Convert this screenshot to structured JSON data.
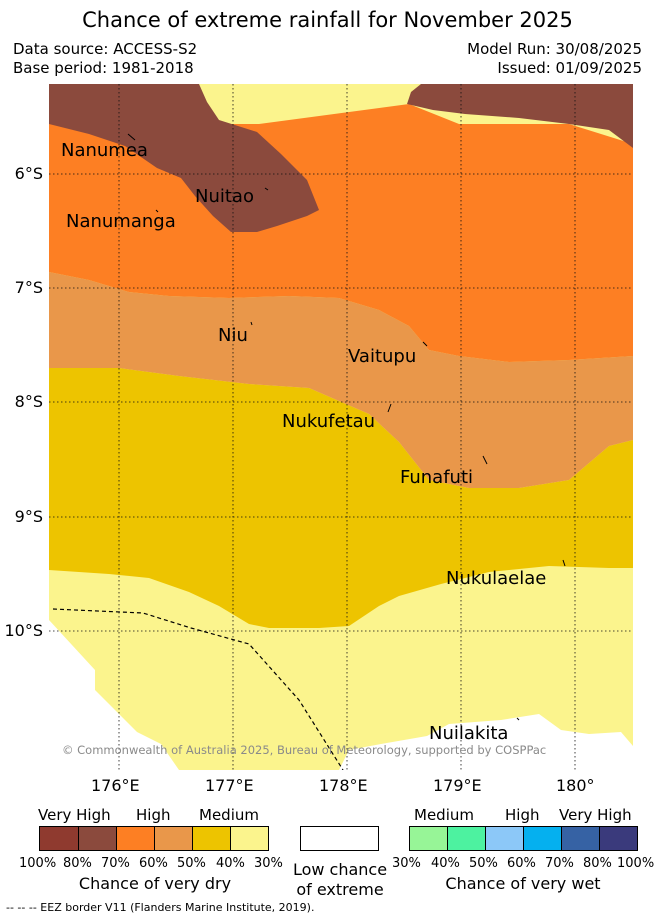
{
  "title": "Chance of extreme rainfall for November 2025",
  "data_source": "Data source: ACCESS-S2",
  "base_period": "Base period: 1981-2018",
  "model_run": "Model Run: 30/08/2025",
  "issued": "Issued: 01/09/2025",
  "axes": {
    "latitudes": [
      "6°S",
      "7°S",
      "8°S",
      "9°S",
      "10°S"
    ],
    "longitudes": [
      "176°E",
      "177°E",
      "178°E",
      "179°E",
      "180°"
    ]
  },
  "islands": [
    "Nanumea",
    "Nuitao",
    "Nanumanga",
    "Niu",
    "Vaitupu",
    "Nukufetau",
    "Funafuti",
    "Nukulaelae",
    "Nuilakita"
  ],
  "copyright": "© Commonwealth of Australia 2025, Bureau of Meteorology, supported by COSPPac",
  "colors": {
    "very_high_dry": "#8b4a3d",
    "high_dry": "#fd7f23",
    "medium_high_dry": "#e9974a",
    "medium_dry": "#edc400",
    "low_medium_dry": "#fbf48d",
    "low": "#ffffff"
  },
  "legend_dry": {
    "headers": [
      "Very High",
      "High",
      "Medium"
    ],
    "ticks": [
      "100%",
      "80%",
      "70%",
      "60%",
      "50%",
      "40%",
      "30%"
    ],
    "colors": [
      "#8f3a2f",
      "#8b4a3d",
      "#fd7f23",
      "#e9974a",
      "#edc400",
      "#fbf48d"
    ],
    "caption": "Chance of very dry"
  },
  "legend_low": {
    "caption_line1": "Low chance",
    "caption_line2": "of extreme"
  },
  "legend_wet": {
    "headers": [
      "Medium",
      "High",
      "Very High"
    ],
    "ticks": [
      "30%",
      "40%",
      "50%",
      "60%",
      "70%",
      "80%",
      "100%"
    ],
    "colors": [
      "#97f597",
      "#4df2a0",
      "#8cc8f8",
      "#05b0ef",
      "#3662a4",
      "#3a3a7c"
    ],
    "caption": "Chance of very wet"
  },
  "footer": "-- -- -- EEZ border V11 (Flanders Marine Institute, 2019)."
}
